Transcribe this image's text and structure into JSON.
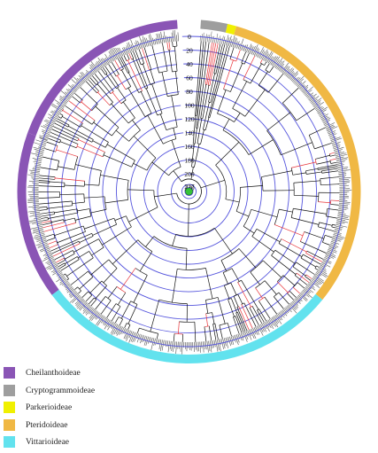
{
  "figure": {
    "scale_labels": [
      "0",
      "20",
      "40",
      "60",
      "80",
      "100",
      "120",
      "140",
      "160",
      "180",
      "200",
      "220",
      "227"
    ],
    "colors": {
      "ring": "#5555dd",
      "branch": "#111111",
      "highlight_branch": "#e8353a",
      "root_node": "#36c23a"
    }
  },
  "legend": {
    "items": [
      {
        "label": "Cheilanthoideae",
        "color": "#8a55b5"
      },
      {
        "label": "Cryptogrammoideae",
        "color": "#9e9e9e"
      },
      {
        "label": "Parkerioideae",
        "color": "#f0f000"
      },
      {
        "label": "Pteridoideae",
        "color": "#f0b844"
      },
      {
        "label": "Vittarioideae",
        "color": "#62e2ee"
      }
    ]
  },
  "clades": [
    {
      "name": "Cheilanthoideae",
      "start_deg": -70,
      "end_deg": -4,
      "color": "#8a55b5"
    },
    {
      "name": "Cryptogrammoideae",
      "start_deg": 4,
      "end_deg": 13,
      "color": "#9e9e9e"
    },
    {
      "name": "Parkerioideae",
      "start_deg": 13,
      "end_deg": 16,
      "color": "#f0f000"
    },
    {
      "name": "Pteridoideae",
      "start_deg": 16,
      "end_deg": 129,
      "color": "#f0b844"
    },
    {
      "name": "Vittarioideae",
      "start_deg": 129,
      "end_deg": 233,
      "color": "#62e2ee"
    },
    {
      "name": "Cheilanthoideae",
      "start_deg": 233,
      "end_deg": 290,
      "color": "#8a55b5"
    }
  ]
}
